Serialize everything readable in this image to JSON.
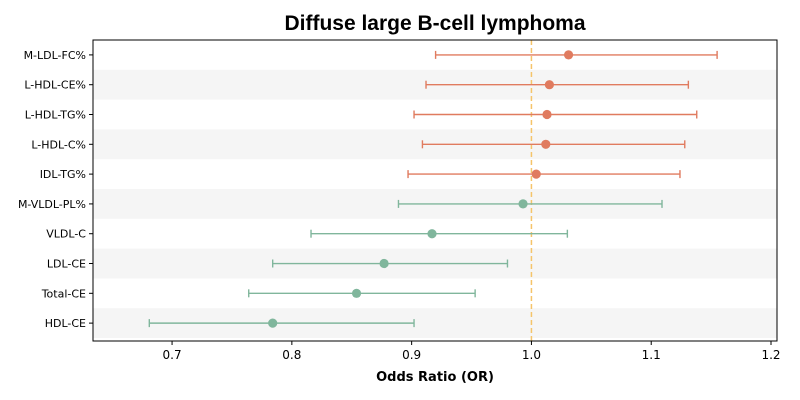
{
  "chart_data": {
    "type": "forest",
    "title": "Diffuse large B-cell lymphoma",
    "xlabel": "Odds Ratio (OR)",
    "xlim": [
      0.634,
      1.205
    ],
    "xticks": [
      0.7,
      0.8,
      0.9,
      1.0,
      1.1,
      1.2
    ],
    "xtick_labels": [
      "0.7",
      "0.8",
      "0.9",
      "1.0",
      "1.1",
      "1.2"
    ],
    "reference_line": 1.0,
    "reference_color": "#f5c46a",
    "grid": false,
    "colors": {
      "positive": "#e07b5f",
      "negative": "#80b69c",
      "band": "#f5f5f5"
    },
    "rows": [
      {
        "label": "M-LDL-FC%",
        "or": 1.031,
        "lower": 0.92,
        "upper": 1.155
      },
      {
        "label": "L-HDL-CE%",
        "or": 1.015,
        "lower": 0.912,
        "upper": 1.131
      },
      {
        "label": "L-HDL-TG%",
        "or": 1.013,
        "lower": 0.902,
        "upper": 1.138
      },
      {
        "label": "L-HDL-C%",
        "or": 1.012,
        "lower": 0.909,
        "upper": 1.128
      },
      {
        "label": "IDL-TG%",
        "or": 1.004,
        "lower": 0.897,
        "upper": 1.124
      },
      {
        "label": "M-VLDL-PL%",
        "or": 0.993,
        "lower": 0.889,
        "upper": 1.109
      },
      {
        "label": "VLDL-C",
        "or": 0.917,
        "lower": 0.816,
        "upper": 1.03
      },
      {
        "label": "LDL-CE",
        "or": 0.877,
        "lower": 0.784,
        "upper": 0.98
      },
      {
        "label": "Total-CE",
        "or": 0.854,
        "lower": 0.764,
        "upper": 0.953
      },
      {
        "label": "HDL-CE",
        "or": 0.784,
        "lower": 0.681,
        "upper": 0.902
      }
    ]
  }
}
